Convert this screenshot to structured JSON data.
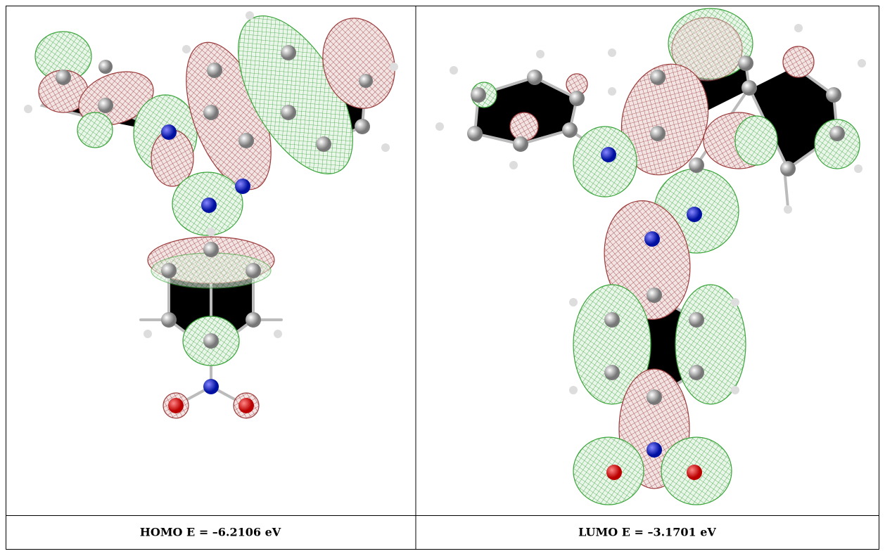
{
  "panels": [
    {
      "caption": "HOMO E = –6.2106 eV"
    },
    {
      "caption": "LUMO E = –3.1701 eV"
    }
  ]
}
